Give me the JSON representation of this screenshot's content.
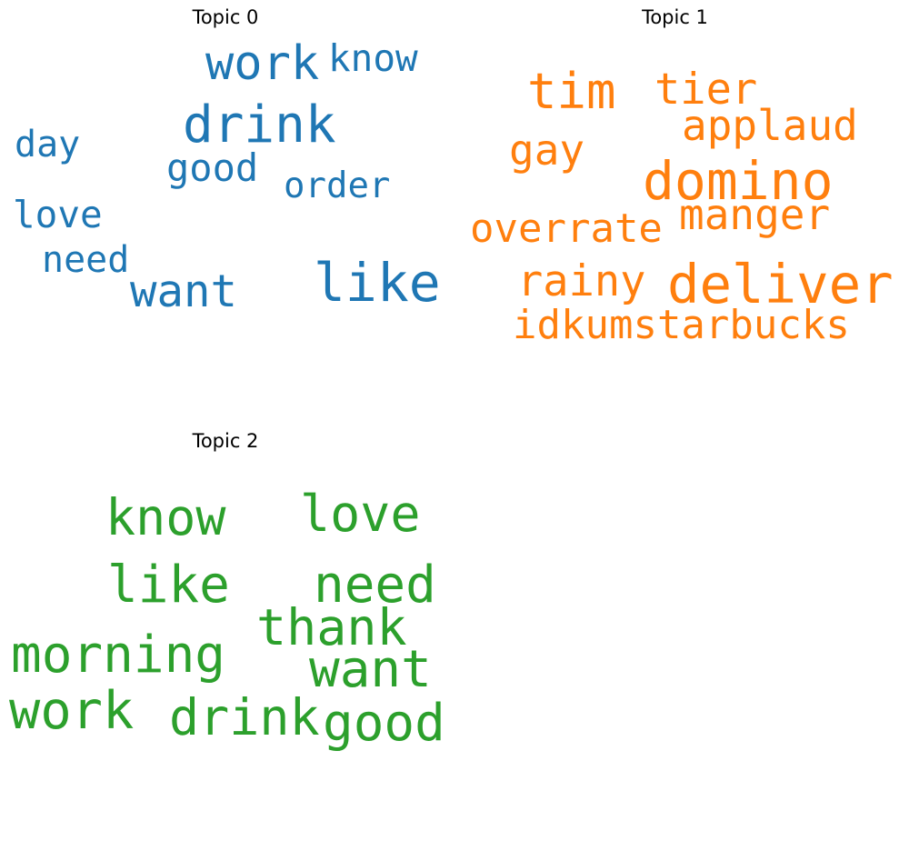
{
  "topics": [
    {
      "title": "Topic 0",
      "color": "#1f77b4",
      "words": [
        "work",
        "know",
        "drink",
        "day",
        "good",
        "order",
        "love",
        "need",
        "want",
        "like"
      ]
    },
    {
      "title": "Topic 1",
      "color": "#ff7f0e",
      "words": [
        "tim",
        "tier",
        "applaud",
        "gay",
        "domino",
        "manger",
        "overrate",
        "rainy",
        "deliver",
        "idkumstarbucks"
      ]
    },
    {
      "title": "Topic 2",
      "color": "#2ca02c",
      "words": [
        "know",
        "love",
        "like",
        "need",
        "thank",
        "morning",
        "want",
        "work",
        "drink",
        "good"
      ]
    }
  ]
}
